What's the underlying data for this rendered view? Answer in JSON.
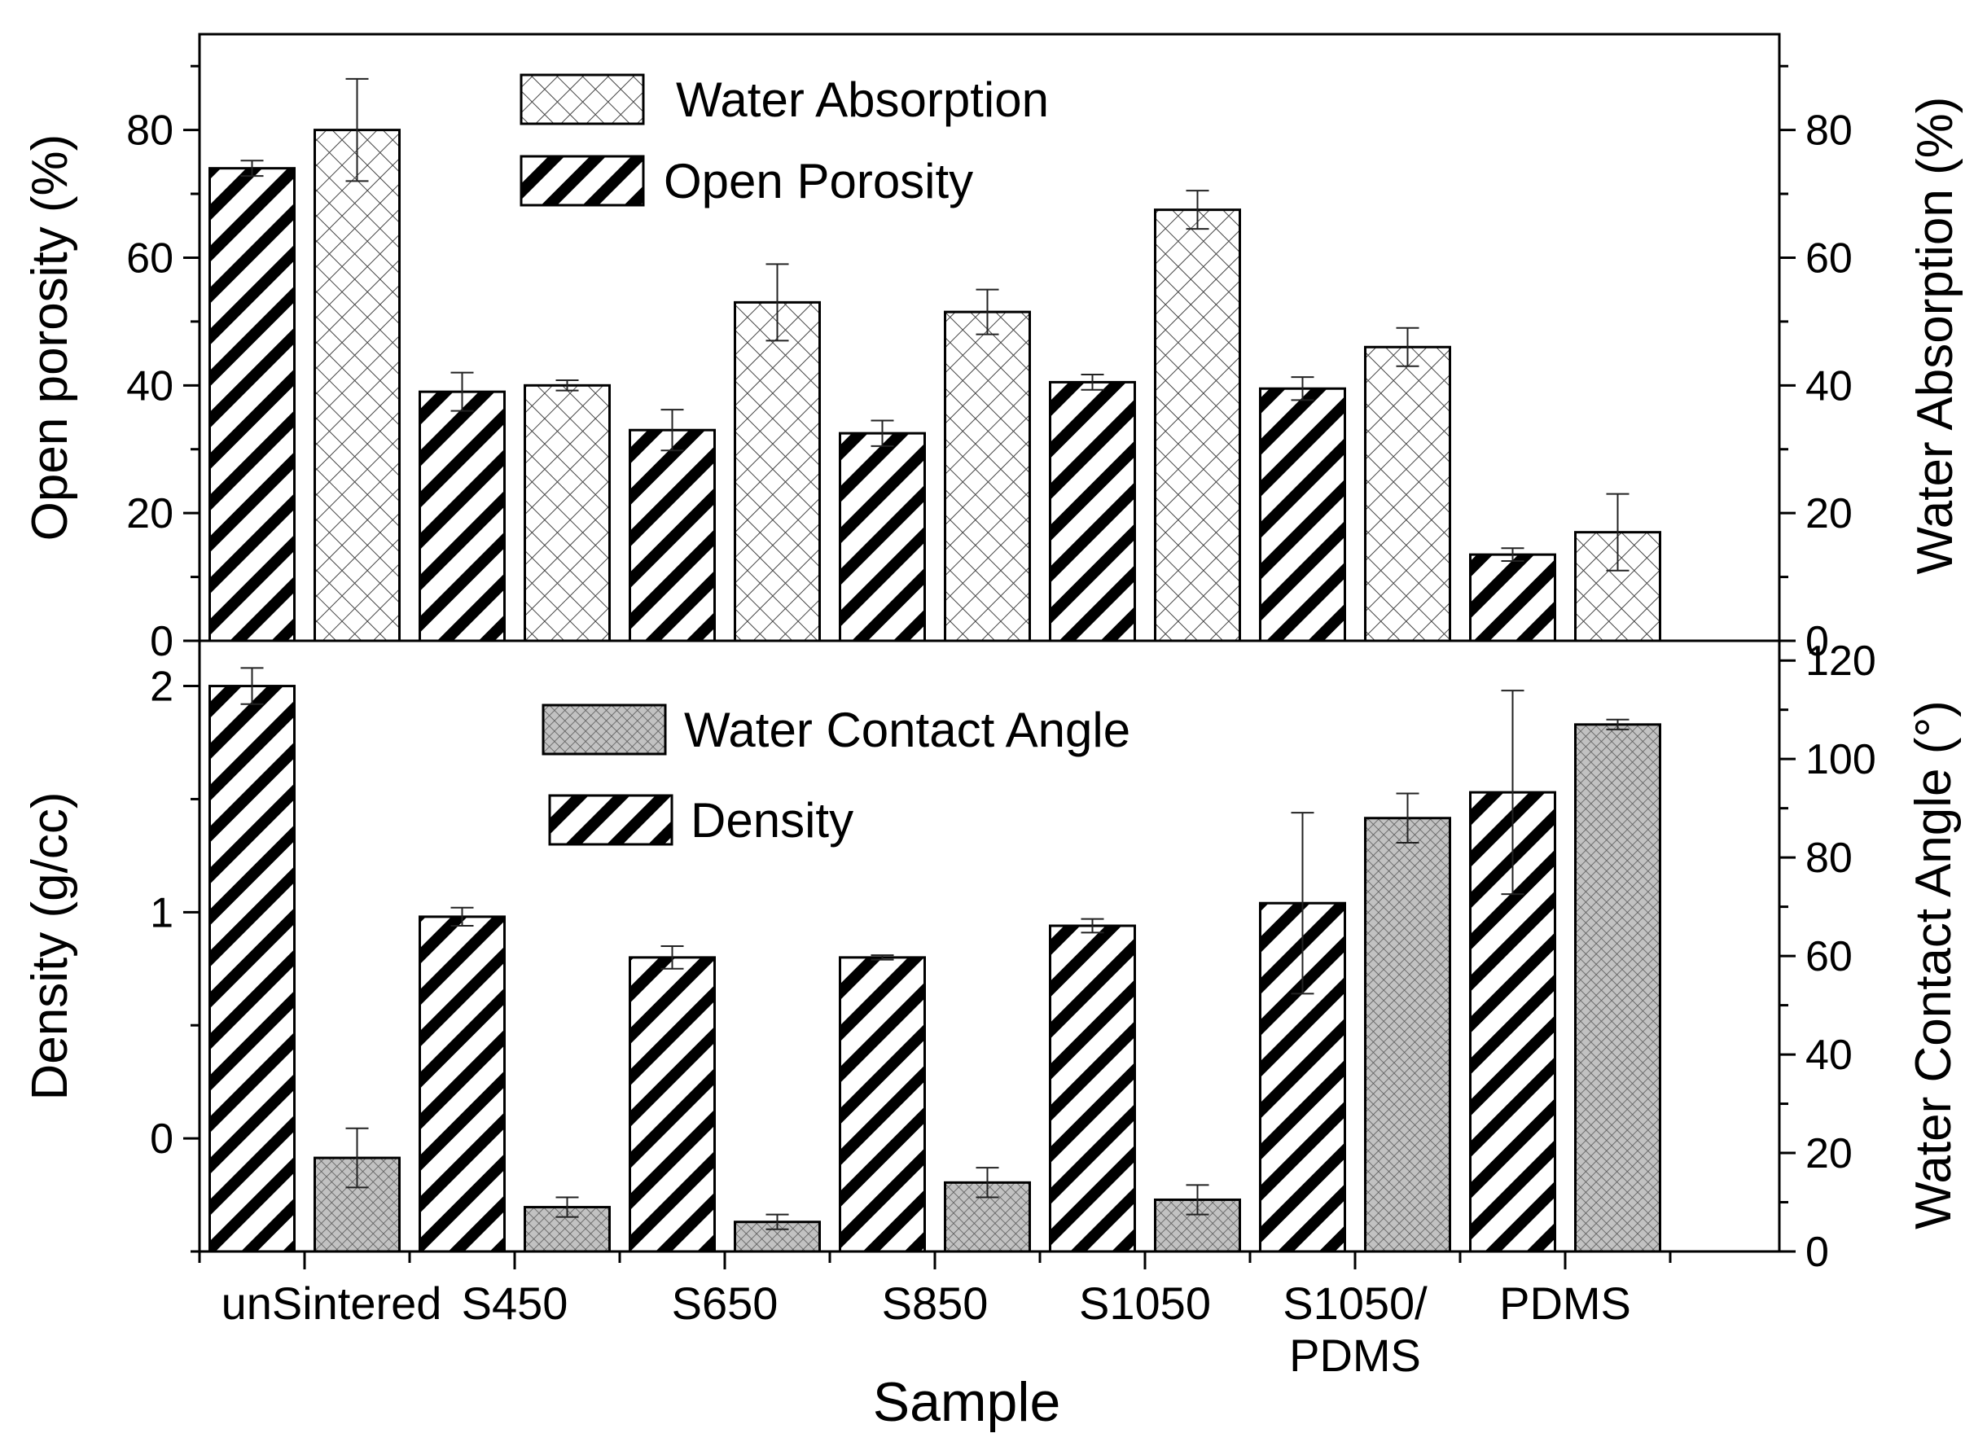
{
  "chart_data": [
    {
      "type": "bar",
      "panel": "top",
      "categories": [
        "unSintered",
        "S450",
        "S650",
        "S850",
        "S1050",
        "S1050/PDMS",
        "PDMS"
      ],
      "ylabel": "Open porosity (%)",
      "y2label": "Water Absorption (%)",
      "ylim": [
        0,
        95
      ],
      "y2lim": [
        0,
        95
      ],
      "yticks": [
        "0",
        "20",
        "40",
        "60",
        "80"
      ],
      "y2ticks": [
        "0",
        "20",
        "40",
        "60",
        "80"
      ],
      "series": [
        {
          "name": "Open Porosity",
          "pattern": "diagonal-hatch",
          "axis": "left",
          "values": [
            74,
            39,
            33,
            32.5,
            40.5,
            39.5,
            13.5
          ],
          "errors": [
            1.2,
            3,
            3.2,
            2,
            1.2,
            1.8,
            1
          ]
        },
        {
          "name": "Water Absorption",
          "pattern": "cross-hatch",
          "axis": "right",
          "values": [
            80,
            40,
            53,
            51.5,
            67.5,
            46,
            17
          ],
          "errors": [
            8,
            0.8,
            6,
            3.5,
            3,
            3,
            6
          ]
        }
      ],
      "legend": [
        {
          "label": "Water Absorption",
          "pattern": "cross-hatch"
        },
        {
          "label": "Open Porosity",
          "pattern": "diagonal-hatch"
        }
      ]
    },
    {
      "type": "bar",
      "panel": "bottom",
      "categories": [
        "unSintered",
        "S450",
        "S650",
        "S850",
        "S1050",
        "S1050/PDMS",
        "PDMS"
      ],
      "xlabel": "Sample",
      "ylabel": "Density (g/cc)",
      "y2label": "Water Contact Angle (°)",
      "ylim": [
        -0.5,
        2.2
      ],
      "y2lim": [
        0,
        124
      ],
      "yticks": [
        "0",
        "1",
        "2"
      ],
      "y2ticks": [
        "0",
        "20",
        "40",
        "60",
        "80",
        "100",
        "120"
      ],
      "series": [
        {
          "name": "Density",
          "pattern": "diagonal-hatch",
          "axis": "left",
          "values": [
            2.0,
            0.98,
            0.8,
            0.8,
            0.94,
            1.04,
            1.53
          ],
          "errors": [
            0.08,
            0.04,
            0.05,
            0.01,
            0.03,
            0.4,
            0.45
          ]
        },
        {
          "name": "Water Contact Angle",
          "pattern": "fine-grid-gray",
          "axis": "right",
          "values": [
            19,
            9,
            6,
            14,
            10.5,
            88,
            107
          ],
          "errors": [
            6,
            2,
            1.5,
            3,
            3,
            5,
            1
          ]
        }
      ],
      "legend": [
        {
          "label": "Water Contact Angle",
          "pattern": "fine-grid-gray"
        },
        {
          "label": "Density",
          "pattern": "diagonal-hatch"
        }
      ]
    }
  ],
  "x_tick_labels": [
    {
      "lines": [
        "unSintered"
      ]
    },
    {
      "lines": [
        "S450"
      ]
    },
    {
      "lines": [
        "S650"
      ]
    },
    {
      "lines": [
        "S850"
      ]
    },
    {
      "lines": [
        "S1050"
      ]
    },
    {
      "lines": [
        "S1050/",
        "PDMS"
      ]
    },
    {
      "lines": [
        "PDMS"
      ]
    }
  ]
}
